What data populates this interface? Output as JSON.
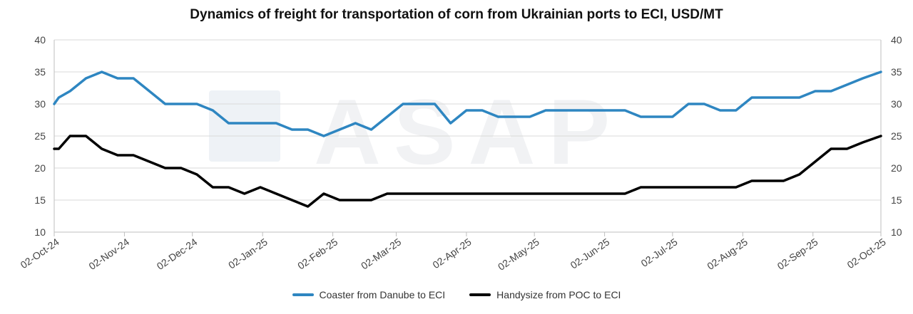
{
  "chart_data": {
    "type": "line",
    "title": "Dynamics of freight for transportation of corn from Ukrainian ports to ECI, USD/MT",
    "xlabel": "",
    "ylabel": "",
    "ylim": [
      10,
      40
    ],
    "yticks": [
      10,
      15,
      20,
      25,
      30,
      35,
      40
    ],
    "xlim": [
      "2024-10-02",
      "2025-10-02"
    ],
    "xticks": [
      {
        "date": "2024-10-02",
        "label": "02-Oct-24"
      },
      {
        "date": "2024-11-02",
        "label": "02-Nov-24"
      },
      {
        "date": "2024-12-02",
        "label": "02-Dec-24"
      },
      {
        "date": "2025-01-02",
        "label": "02-Jan-25"
      },
      {
        "date": "2025-02-02",
        "label": "02-Feb-25"
      },
      {
        "date": "2025-03-02",
        "label": "02-Mar-25"
      },
      {
        "date": "2025-04-02",
        "label": "02-Apr-25"
      },
      {
        "date": "2025-05-02",
        "label": "02-May-25"
      },
      {
        "date": "2025-06-02",
        "label": "02-Jun-25"
      },
      {
        "date": "2025-07-02",
        "label": "02-Jul-25"
      },
      {
        "date": "2025-08-02",
        "label": "02-Aug-25"
      },
      {
        "date": "2025-09-02",
        "label": "02-Sep-25"
      },
      {
        "date": "2025-10-02",
        "label": "02-Oct-25"
      }
    ],
    "grid": {
      "horizontal": true,
      "vertical": false
    },
    "secondary_y_axis": true,
    "legend_position": "bottom",
    "series": [
      {
        "name": "Coaster from Danube to ECI",
        "color": "#2e86c1",
        "x": [
          "2024-10-02",
          "2024-10-04",
          "2024-10-09",
          "2024-10-16",
          "2024-10-23",
          "2024-10-30",
          "2024-11-06",
          "2024-11-13",
          "2024-11-20",
          "2024-11-27",
          "2024-12-04",
          "2024-12-11",
          "2024-12-18",
          "2024-12-25",
          "2025-01-01",
          "2025-01-08",
          "2025-01-15",
          "2025-01-22",
          "2025-01-29",
          "2025-02-05",
          "2025-02-12",
          "2025-02-19",
          "2025-02-26",
          "2025-03-05",
          "2025-03-12",
          "2025-03-19",
          "2025-03-26",
          "2025-04-02",
          "2025-04-09",
          "2025-04-16",
          "2025-04-23",
          "2025-04-30",
          "2025-05-07",
          "2025-05-14",
          "2025-05-21",
          "2025-05-28",
          "2025-06-04",
          "2025-06-11",
          "2025-06-18",
          "2025-06-25",
          "2025-07-02",
          "2025-07-09",
          "2025-07-16",
          "2025-07-23",
          "2025-07-30",
          "2025-08-06",
          "2025-08-13",
          "2025-08-20",
          "2025-08-27",
          "2025-09-03",
          "2025-09-10",
          "2025-09-17",
          "2025-09-24",
          "2025-10-02"
        ],
        "values": [
          30,
          31,
          32,
          34,
          35,
          34,
          34,
          32,
          30,
          30,
          30,
          29,
          27,
          27,
          27,
          27,
          26,
          26,
          25,
          26,
          27,
          26,
          28,
          30,
          30,
          30,
          27,
          29,
          29,
          28,
          28,
          28,
          29,
          29,
          29,
          29,
          29,
          29,
          28,
          28,
          28,
          30,
          30,
          29,
          29,
          31,
          31,
          31,
          31,
          32,
          32,
          33,
          34,
          35
        ]
      },
      {
        "name": "Handysize from POC to ECI",
        "color": "#000000",
        "x": [
          "2024-10-02",
          "2024-10-04",
          "2024-10-09",
          "2024-10-16",
          "2024-10-23",
          "2024-10-30",
          "2024-11-06",
          "2024-11-13",
          "2024-11-20",
          "2024-11-27",
          "2024-12-04",
          "2024-12-11",
          "2024-12-18",
          "2024-12-25",
          "2025-01-01",
          "2025-01-08",
          "2025-01-15",
          "2025-01-22",
          "2025-01-29",
          "2025-02-05",
          "2025-02-12",
          "2025-02-19",
          "2025-02-26",
          "2025-03-05",
          "2025-03-12",
          "2025-03-19",
          "2025-03-26",
          "2025-04-02",
          "2025-04-09",
          "2025-04-16",
          "2025-04-23",
          "2025-04-30",
          "2025-05-07",
          "2025-05-14",
          "2025-05-21",
          "2025-05-28",
          "2025-06-04",
          "2025-06-11",
          "2025-06-18",
          "2025-06-25",
          "2025-07-02",
          "2025-07-09",
          "2025-07-16",
          "2025-07-23",
          "2025-07-30",
          "2025-08-06",
          "2025-08-13",
          "2025-08-20",
          "2025-08-27",
          "2025-09-03",
          "2025-09-10",
          "2025-09-17",
          "2025-09-24",
          "2025-10-02"
        ],
        "values": [
          23,
          23,
          25,
          25,
          23,
          22,
          22,
          21,
          20,
          20,
          19,
          17,
          17,
          16,
          17,
          16,
          15,
          14,
          16,
          15,
          15,
          15,
          16,
          16,
          16,
          16,
          16,
          16,
          16,
          16,
          16,
          16,
          16,
          16,
          16,
          16,
          16,
          16,
          17,
          17,
          17,
          17,
          17,
          17,
          17,
          18,
          18,
          18,
          19,
          21,
          23,
          23,
          24,
          25
        ]
      }
    ],
    "watermark": "ASAP"
  }
}
